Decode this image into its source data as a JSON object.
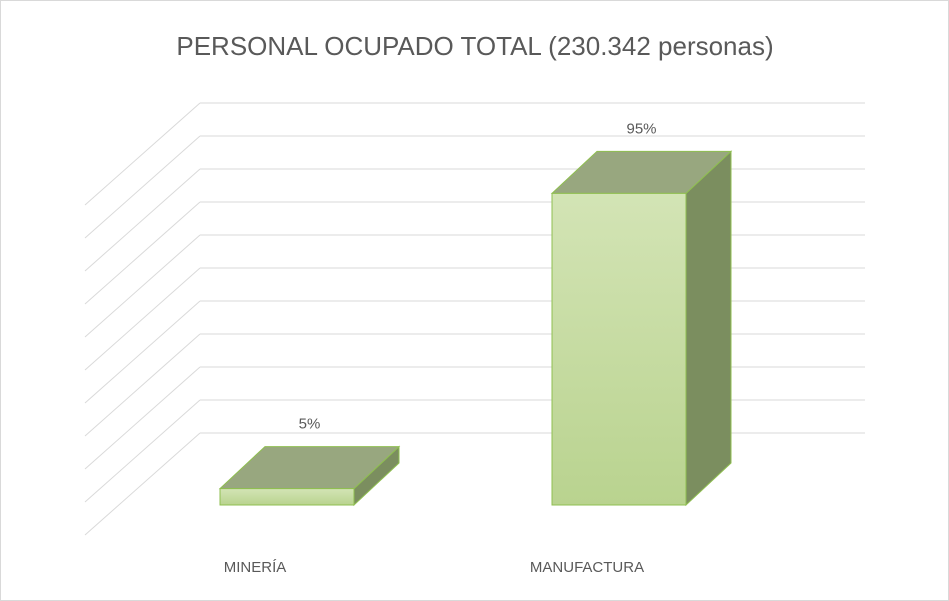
{
  "chart_data": {
    "type": "bar3d",
    "title": "PERSONAL  OCUPADO  TOTAL   (230.342  personas)",
    "categories": [
      "MINERÍA",
      "MANUFACTURA"
    ],
    "values": [
      5,
      95
    ],
    "value_labels": [
      "5%",
      "95%"
    ],
    "color": "#c6dca4",
    "ylim": [
      0,
      100
    ],
    "yticks": [
      0,
      10,
      20,
      30,
      40,
      50,
      60,
      70,
      80,
      90,
      100
    ],
    "grid": true
  }
}
